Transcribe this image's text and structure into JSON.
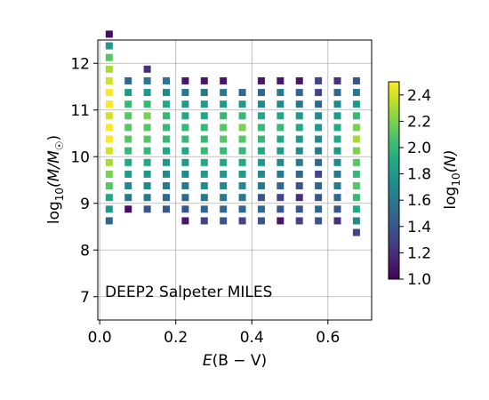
{
  "chart_data": {
    "type": "heatmap",
    "title": "",
    "annotation": "DEEP2 Salpeter MILES",
    "xlabel_italic": "E",
    "xlabel_rest": "(B − V)",
    "ylabel_prefix": "log",
    "ylabel_sub": "10",
    "ylabel_rest": "(M/M",
    "ylabel_sym": "☉",
    "ylabel_close": ")",
    "cbar_prefix": "log",
    "cbar_sub": "10",
    "cbar_rest": "(N)",
    "xlim": [
      -0.005,
      0.715
    ],
    "ylim": [
      6.5,
      12.5
    ],
    "x_ticks": [
      0.0,
      0.2,
      0.4,
      0.6
    ],
    "x_tick_labels": [
      "0.0",
      "0.2",
      "0.4",
      "0.6"
    ],
    "y_ticks": [
      7,
      8,
      9,
      10,
      11,
      12
    ],
    "y_tick_labels": [
      "7",
      "8",
      "9",
      "10",
      "11",
      "12"
    ],
    "grid": true,
    "clim": [
      1.0,
      2.5
    ],
    "cbar_ticks": [
      1.0,
      1.2,
      1.4,
      1.6,
      1.8,
      2.0,
      2.2,
      2.4
    ],
    "cbar_tick_labels": [
      "1.0",
      "1.2",
      "1.4",
      "1.6",
      "1.8",
      "2.0",
      "2.2",
      "2.4"
    ],
    "colormap": "viridis",
    "bin_width_x": 0.05,
    "bin_height_y": 0.25,
    "columns": [
      {
        "x": 0.025,
        "y_start": 8.625,
        "values": [
          1.5,
          1.8,
          1.9,
          2.1,
          2.2,
          2.3,
          2.4,
          2.5,
          2.5,
          2.4,
          2.5,
          2.5,
          2.4,
          2.3,
          2.1,
          1.8,
          1.05
        ]
      },
      {
        "x": 0.075,
        "y_start": 8.875,
        "values": [
          1.05,
          1.6,
          1.7,
          1.8,
          1.9,
          2.0,
          2.1,
          2.1,
          2.1,
          2.0,
          1.8,
          1.5
        ]
      },
      {
        "x": 0.125,
        "y_start": 8.875,
        "values": [
          1.4,
          1.6,
          1.7,
          1.8,
          1.9,
          2.0,
          2.1,
          2.1,
          2.2,
          2.0,
          1.8,
          1.6,
          1.2
        ]
      },
      {
        "x": 0.175,
        "y_start": 8.875,
        "values": [
          1.4,
          1.5,
          1.6,
          1.7,
          1.8,
          1.9,
          2.0,
          2.0,
          2.0,
          1.9,
          1.7,
          1.6
        ]
      },
      {
        "x": 0.225,
        "y_start": 8.625,
        "values": [
          1.1,
          1.4,
          1.5,
          1.6,
          1.7,
          1.8,
          1.9,
          2.0,
          2.0,
          1.9,
          1.8,
          1.6,
          1.1
        ]
      },
      {
        "x": 0.275,
        "y_start": 8.625,
        "values": [
          1.3,
          1.5,
          1.6,
          1.7,
          1.8,
          1.9,
          2.0,
          2.0,
          2.0,
          1.9,
          1.8,
          1.6,
          1.1
        ]
      },
      {
        "x": 0.325,
        "y_start": 8.625,
        "values": [
          1.4,
          1.5,
          1.6,
          1.7,
          1.8,
          1.9,
          2.0,
          2.1,
          2.1,
          2.0,
          1.8,
          1.6,
          1.1
        ]
      },
      {
        "x": 0.375,
        "y_start": 8.625,
        "values": [
          1.3,
          1.5,
          1.6,
          1.7,
          1.8,
          1.9,
          2.0,
          2.1,
          2.2,
          2.0,
          1.8,
          1.5
        ]
      },
      {
        "x": 0.425,
        "y_start": 8.625,
        "values": [
          1.4,
          1.5,
          1.4,
          1.6,
          1.7,
          1.8,
          1.9,
          2.0,
          2.0,
          1.9,
          1.7,
          1.5,
          1.1
        ]
      },
      {
        "x": 0.475,
        "y_start": 8.625,
        "values": [
          1.1,
          1.4,
          1.3,
          1.5,
          1.6,
          1.7,
          1.8,
          1.9,
          2.0,
          1.9,
          1.7,
          1.6,
          1.1
        ]
      },
      {
        "x": 0.525,
        "y_start": 8.625,
        "values": [
          1.3,
          1.4,
          1.2,
          1.4,
          1.5,
          1.6,
          1.7,
          1.8,
          1.9,
          1.8,
          1.6,
          1.5,
          1.1
        ]
      },
      {
        "x": 0.575,
        "y_start": 8.625,
        "values": [
          1.4,
          1.5,
          1.4,
          1.5,
          1.3,
          1.5,
          1.6,
          1.7,
          1.8,
          1.7,
          1.5,
          1.3,
          1.3
        ]
      },
      {
        "x": 0.625,
        "y_start": 8.625,
        "values": [
          1.2,
          1.4,
          1.5,
          1.6,
          1.6,
          1.7,
          1.8,
          1.9,
          1.9,
          1.8,
          1.7,
          1.5,
          1.2
        ]
      },
      {
        "x": 0.675,
        "y_start": 8.375,
        "values": [
          1.3,
          1.7,
          1.9,
          2.0,
          2.1,
          2.0,
          2.1,
          2.2,
          2.3,
          2.2,
          2.0,
          1.8,
          1.6,
          1.4
        ]
      }
    ]
  }
}
